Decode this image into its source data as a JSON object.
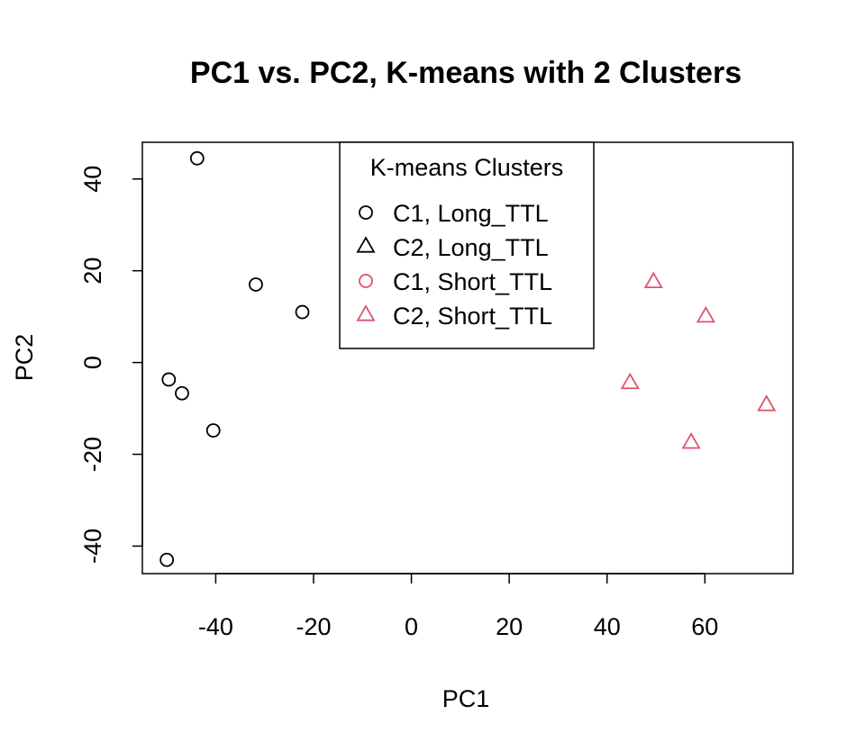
{
  "chart_data": {
    "type": "scatter",
    "title": "PC1 vs. PC2, K-means with 2 Clusters",
    "xlabel": "PC1",
    "ylabel": "PC2",
    "xlim": [
      -55,
      78
    ],
    "ylim": [
      -46,
      48
    ],
    "xticks": [
      -40,
      -20,
      0,
      20,
      40,
      60
    ],
    "yticks": [
      -40,
      -20,
      0,
      20,
      40
    ],
    "grid": false,
    "legend": {
      "title": "K-means Clusters",
      "placement": "top-center",
      "entries": [
        {
          "label": "C1, Long_TTL",
          "shape": "circle",
          "color": "#000000"
        },
        {
          "label": "C2, Long_TTL",
          "shape": "triangle",
          "color": "#000000"
        },
        {
          "label": "C1, Short_TTL",
          "shape": "circle",
          "color": "#DF536B"
        },
        {
          "label": "C2, Short_TTL",
          "shape": "triangle",
          "color": "#DF536B"
        }
      ]
    },
    "series": [
      {
        "name": "C1, Long_TTL",
        "shape": "circle",
        "color": "#000000",
        "points": [
          {
            "x": -43.8,
            "y": 44.5
          },
          {
            "x": -31.8,
            "y": 17.0
          },
          {
            "x": -22.3,
            "y": 11.0
          },
          {
            "x": -49.6,
            "y": -3.7
          },
          {
            "x": -46.9,
            "y": -6.7
          },
          {
            "x": -40.5,
            "y": -14.8
          },
          {
            "x": -50.0,
            "y": -43.0
          }
        ]
      },
      {
        "name": "C2, Short_TTL",
        "shape": "triangle",
        "color": "#DF536B",
        "points": [
          {
            "x": 49.5,
            "y": 17.5
          },
          {
            "x": 60.2,
            "y": 10.0
          },
          {
            "x": 44.7,
            "y": -4.5
          },
          {
            "x": 72.6,
            "y": -9.3
          },
          {
            "x": 57.2,
            "y": -17.5
          }
        ]
      }
    ]
  }
}
